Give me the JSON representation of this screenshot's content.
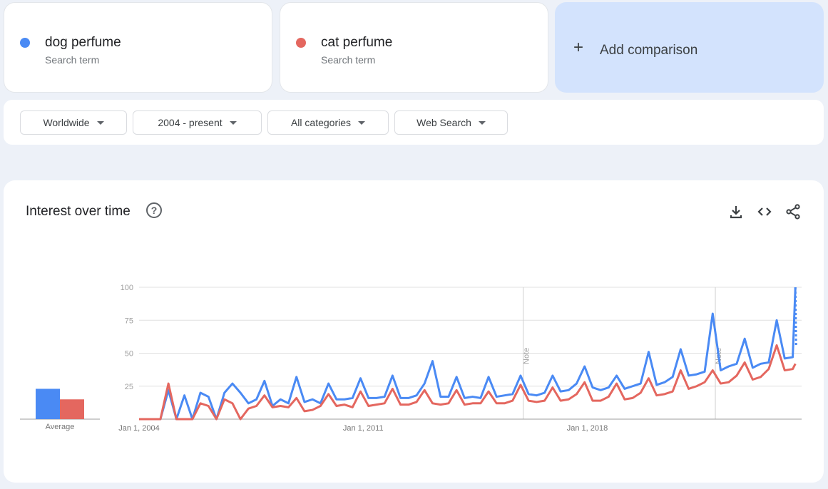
{
  "terms": [
    {
      "name": "dog perfume",
      "subtitle": "Search term",
      "color": "#4a8af4"
    },
    {
      "name": "cat perfume",
      "subtitle": "Search term",
      "color": "#e4675f"
    }
  ],
  "add_comparison": {
    "icon": "plus-icon",
    "label": "Add comparison"
  },
  "filters": [
    {
      "label": "Worldwide"
    },
    {
      "label": "2004 - present"
    },
    {
      "label": "All categories"
    },
    {
      "label": "Web Search"
    }
  ],
  "interest": {
    "title": "Interest over time",
    "help_icon": "help-circle-icon",
    "toolbar": [
      "download-icon",
      "embed-code-icon",
      "share-icon"
    ],
    "average_label": "Average"
  },
  "chart_data": {
    "type": "line",
    "ylim": [
      0,
      100
    ],
    "yticks": [
      25,
      50,
      75,
      100
    ],
    "xtick_labels": [
      {
        "date": "2004-01",
        "label": "Jan 1, 2004"
      },
      {
        "date": "2011-01",
        "label": "Jan 1, 2011"
      },
      {
        "date": "2018-01",
        "label": "Jan 1, 2018"
      }
    ],
    "notes": [
      {
        "date": "2016-01",
        "label": "Note"
      },
      {
        "date": "2022-01",
        "label": "Note"
      }
    ],
    "grid": true,
    "averages": [
      23,
      15
    ],
    "x": [
      "2004-01",
      "2004-03",
      "2004-06",
      "2004-09",
      "2004-12",
      "2005-03",
      "2005-06",
      "2005-09",
      "2005-12",
      "2006-03",
      "2006-06",
      "2006-09",
      "2006-12",
      "2007-03",
      "2007-06",
      "2007-09",
      "2007-12",
      "2008-03",
      "2008-06",
      "2008-09",
      "2008-12",
      "2009-03",
      "2009-06",
      "2009-09",
      "2009-12",
      "2010-03",
      "2010-06",
      "2010-09",
      "2010-12",
      "2011-03",
      "2011-06",
      "2011-09",
      "2011-12",
      "2012-03",
      "2012-06",
      "2012-09",
      "2012-12",
      "2013-03",
      "2013-06",
      "2013-09",
      "2013-12",
      "2014-03",
      "2014-06",
      "2014-09",
      "2014-12",
      "2015-03",
      "2015-06",
      "2015-09",
      "2015-12",
      "2016-03",
      "2016-06",
      "2016-09",
      "2016-12",
      "2017-03",
      "2017-06",
      "2017-09",
      "2017-12",
      "2018-03",
      "2018-06",
      "2018-09",
      "2018-12",
      "2019-03",
      "2019-06",
      "2019-09",
      "2019-12",
      "2020-03",
      "2020-06",
      "2020-09",
      "2020-12",
      "2021-03",
      "2021-06",
      "2021-09",
      "2021-12",
      "2022-03",
      "2022-06",
      "2022-09",
      "2022-12",
      "2023-03",
      "2023-06",
      "2023-09",
      "2023-12",
      "2024-03",
      "2024-06",
      "2024-07"
    ],
    "series": [
      {
        "name": "dog perfume",
        "color": "#4a8af4",
        "values": [
          0,
          0,
          0,
          0,
          22,
          0,
          18,
          0,
          20,
          17,
          0,
          20,
          27,
          20,
          12,
          15,
          29,
          10,
          15,
          12,
          32,
          13,
          15,
          12,
          27,
          15,
          15,
          16,
          31,
          16,
          16,
          17,
          33,
          16,
          16,
          18,
          27,
          44,
          17,
          17,
          32,
          16,
          17,
          16,
          32,
          17,
          18,
          19,
          33,
          19,
          18,
          20,
          33,
          21,
          22,
          27,
          40,
          24,
          22,
          24,
          33,
          23,
          25,
          27,
          51,
          26,
          28,
          32,
          53,
          33,
          34,
          36,
          80,
          37,
          40,
          42,
          61,
          39,
          42,
          43,
          75,
          46,
          47,
          100
        ],
        "partial": {
          "date": "2024-08",
          "value": 55
        }
      },
      {
        "name": "cat perfume",
        "color": "#e4675f",
        "values": [
          0,
          0,
          0,
          0,
          27,
          0,
          0,
          0,
          12,
          10,
          0,
          15,
          12,
          0,
          8,
          10,
          18,
          9,
          10,
          9,
          16,
          6,
          7,
          10,
          19,
          10,
          11,
          9,
          21,
          10,
          11,
          12,
          23,
          11,
          11,
          13,
          22,
          12,
          11,
          12,
          22,
          11,
          12,
          12,
          21,
          12,
          12,
          14,
          26,
          14,
          13,
          14,
          24,
          14,
          15,
          19,
          28,
          14,
          14,
          17,
          27,
          15,
          16,
          20,
          31,
          18,
          19,
          21,
          37,
          23,
          25,
          28,
          37,
          27,
          28,
          33,
          43,
          30,
          32,
          38,
          56,
          37,
          38,
          42
        ]
      }
    ]
  }
}
